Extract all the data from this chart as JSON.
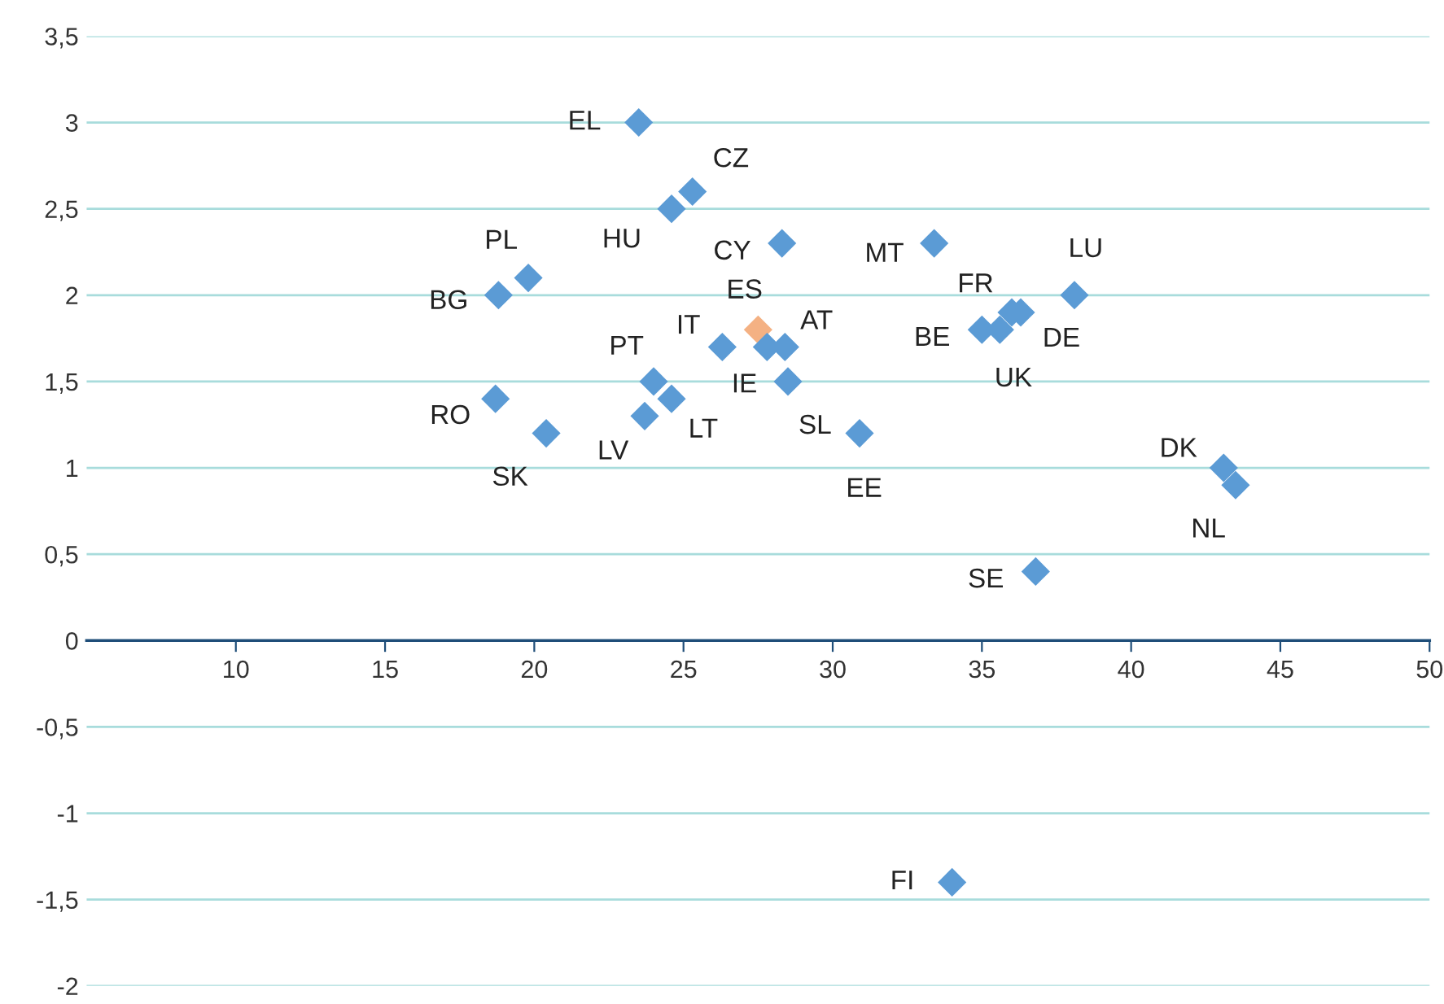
{
  "chart_data": {
    "type": "scatter",
    "x": [
      23.5,
      25.3,
      24.6,
      19.8,
      18.8,
      28.3,
      33.4,
      38.1,
      36.0,
      36.3,
      35.0,
      35.6,
      27.5,
      26.3,
      27.8,
      28.4,
      28.5,
      24.0,
      24.6,
      23.7,
      18.7,
      20.4,
      30.9,
      43.1,
      43.5,
      36.8,
      34.0
    ],
    "values": [
      3.0,
      2.6,
      2.5,
      2.1,
      2.0,
      2.3,
      2.3,
      2.0,
      1.9,
      1.9,
      1.8,
      1.8,
      1.8,
      1.7,
      1.7,
      1.7,
      1.5,
      1.5,
      1.4,
      1.3,
      1.4,
      1.2,
      1.2,
      1.0,
      0.9,
      0.4,
      -1.4
    ],
    "colors": [
      "#5b9bd5",
      "#5b9bd5",
      "#5b9bd5",
      "#5b9bd5",
      "#5b9bd5",
      "#5b9bd5",
      "#5b9bd5",
      "#5b9bd5",
      "#5b9bd5",
      "#5b9bd5",
      "#5b9bd5",
      "#5b9bd5",
      "#f4b183",
      "#5b9bd5",
      "#5b9bd5",
      "#5b9bd5",
      "#5b9bd5",
      "#5b9bd5",
      "#5b9bd5",
      "#5b9bd5",
      "#5b9bd5",
      "#5b9bd5",
      "#5b9bd5",
      "#5b9bd5",
      "#5b9bd5",
      "#5b9bd5",
      "#5b9bd5"
    ],
    "annotations": [
      {
        "text": "EL",
        "x": 23.5,
        "y": 3.0
      },
      {
        "text": "CZ",
        "x": 25.3,
        "y": 2.6
      },
      {
        "text": "HU",
        "x": 24.6,
        "y": 2.5
      },
      {
        "text": "PL",
        "x": 19.8,
        "y": 2.1
      },
      {
        "text": "BG",
        "x": 18.8,
        "y": 2.0
      },
      {
        "text": "CY",
        "x": 28.3,
        "y": 2.3
      },
      {
        "text": "MT",
        "x": 33.4,
        "y": 2.3
      },
      {
        "text": "LU",
        "x": 38.1,
        "y": 2.0
      },
      {
        "text": "FR",
        "x": 36.0,
        "y": 1.9
      },
      {
        "text": "DE",
        "x": 36.3,
        "y": 1.9
      },
      {
        "text": "BE",
        "x": 35.0,
        "y": 1.8
      },
      {
        "text": "UK",
        "x": 35.6,
        "y": 1.8
      },
      {
        "text": "ES",
        "x": 27.5,
        "y": 1.8
      },
      {
        "text": "IT",
        "x": 26.3,
        "y": 1.7
      },
      {
        "text": "IE",
        "x": 27.8,
        "y": 1.7
      },
      {
        "text": "AT",
        "x": 28.4,
        "y": 1.7
      },
      {
        "text": "SL",
        "x": 28.5,
        "y": 1.5
      },
      {
        "text": "PT",
        "x": 24.0,
        "y": 1.5
      },
      {
        "text": "LT",
        "x": 24.6,
        "y": 1.4
      },
      {
        "text": "LV",
        "x": 23.7,
        "y": 1.3
      },
      {
        "text": "RO",
        "x": 18.7,
        "y": 1.4
      },
      {
        "text": "SK",
        "x": 20.4,
        "y": 1.2
      },
      {
        "text": "EE",
        "x": 30.9,
        "y": 1.2
      },
      {
        "text": "DK",
        "x": 43.1,
        "y": 1.0
      },
      {
        "text": "NL",
        "x": 43.5,
        "y": 0.9
      },
      {
        "text": "SE",
        "x": 36.8,
        "y": 0.4
      },
      {
        "text": "FI",
        "x": 34.0,
        "y": -1.4
      }
    ],
    "xlim": [
      5,
      50
    ],
    "xticks": [
      10,
      15,
      20,
      25,
      30,
      35,
      40,
      45,
      50
    ],
    "ylim": [
      -2,
      3.5
    ],
    "yticks": [
      {
        "value": -2,
        "label": "-2"
      },
      {
        "value": -1.5,
        "label": "-1,5"
      },
      {
        "value": -1,
        "label": "-1"
      },
      {
        "value": -0.5,
        "label": "-0,5"
      },
      {
        "value": 0,
        "label": "0"
      },
      {
        "value": 0.5,
        "label": "0,5"
      },
      {
        "value": 1,
        "label": "1"
      },
      {
        "value": 1.5,
        "label": "1,5"
      },
      {
        "value": 2,
        "label": "2"
      },
      {
        "value": 2.5,
        "label": "2,5"
      },
      {
        "value": 3,
        "label": "3"
      },
      {
        "value": 3.5,
        "label": "3,5"
      }
    ],
    "grid": "y",
    "marker": "diamond",
    "legend": false
  }
}
